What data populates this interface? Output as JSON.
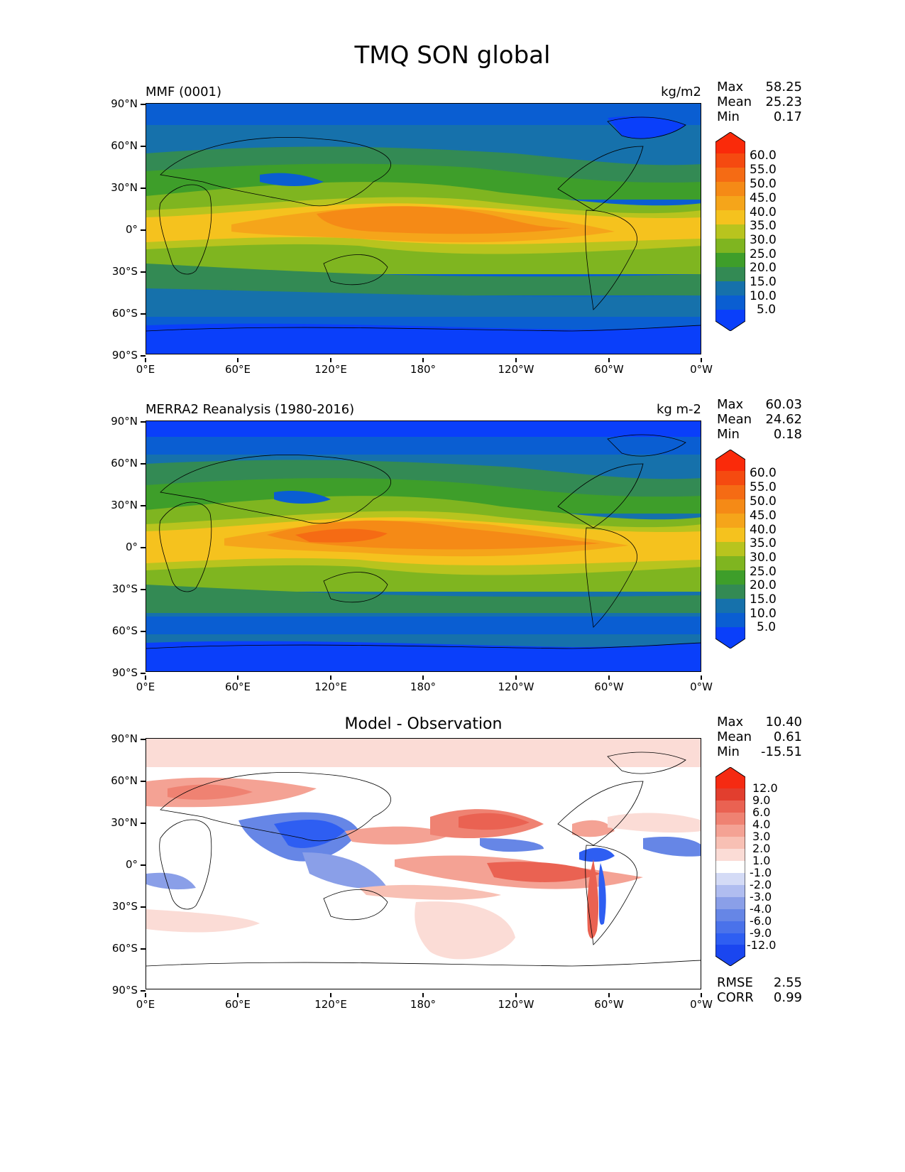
{
  "title": "TMQ SON global",
  "y_ticks": [
    "90°N",
    "60°N",
    "30°N",
    "0°",
    "30°S",
    "60°S",
    "90°S"
  ],
  "x_ticks": [
    "0°E",
    "60°E",
    "120°E",
    "180°",
    "120°W",
    "60°W",
    "0°W"
  ],
  "panels": [
    {
      "title": "MMF (0001)",
      "units": "kg/m2",
      "stats": {
        "max_label": "Max",
        "max": "58.25",
        "mean_label": "Mean",
        "mean": "25.23",
        "min_label": "Min",
        "min": "0.17"
      },
      "colorbar": {
        "labels": [
          "60.0",
          "55.0",
          "50.0",
          "45.0",
          "40.0",
          "35.0",
          "30.0",
          "25.0",
          "20.0",
          "15.0",
          "10.0",
          "5.0"
        ]
      }
    },
    {
      "title": "MERRA2 Reanalysis (1980-2016)",
      "units": "kg m-2",
      "stats": {
        "max_label": "Max",
        "max": "60.03",
        "mean_label": "Mean",
        "mean": "24.62",
        "min_label": "Min",
        "min": "0.18"
      },
      "colorbar": {
        "labels": [
          "60.0",
          "55.0",
          "50.0",
          "45.0",
          "40.0",
          "35.0",
          "30.0",
          "25.0",
          "20.0",
          "15.0",
          "10.0",
          "5.0"
        ]
      }
    },
    {
      "title": "Model - Observation",
      "units": "",
      "stats": {
        "max_label": "Max",
        "max": "10.40",
        "mean_label": "Mean",
        "mean": "0.61",
        "min_label": "Min",
        "min": "-15.51"
      },
      "colorbar": {
        "labels": [
          "12.0",
          "9.0",
          "6.0",
          "4.0",
          "3.0",
          "2.0",
          "1.0",
          "-1.0",
          "-2.0",
          "-3.0",
          "-4.0",
          "-6.0",
          "-9.0",
          "-12.0"
        ]
      },
      "error_stats": {
        "rmse_label": "RMSE",
        "rmse": "2.55",
        "corr_label": "CORR",
        "corr": "0.99"
      }
    }
  ],
  "colors": {
    "tmq_scale": [
      "#0a3ffa",
      "#0a5ed2",
      "#1671ab",
      "#338a54",
      "#3e9e2a",
      "#7fb520",
      "#b8c41e",
      "#f5c21e",
      "#f5a51a",
      "#f58a16",
      "#f56b14",
      "#f54a10",
      "#fa2a0a"
    ],
    "diff_scale": [
      "#1a46f0",
      "#2e5ef2",
      "#4a72ea",
      "#6686e6",
      "#8a9fe8",
      "#b0bdf0",
      "#d4dbf6",
      "#ffffff",
      "#fbdcd6",
      "#f8c0b4",
      "#f4a294",
      "#ef8272",
      "#ea6252",
      "#e23e2e",
      "#f52a12"
    ]
  }
}
